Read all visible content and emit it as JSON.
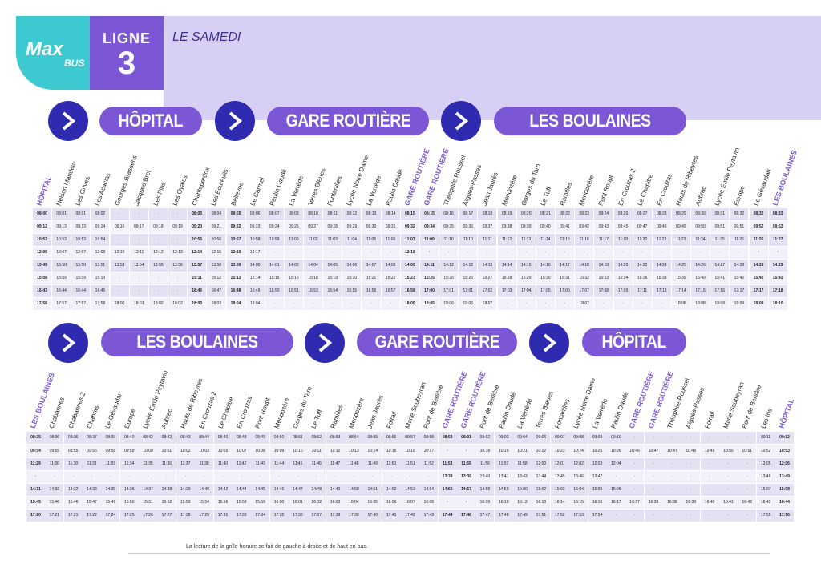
{
  "logo": {
    "max": "Max",
    "bus": "BUS"
  },
  "line": {
    "label": "LIGNE",
    "number": "3"
  },
  "day": "LE SAMEDI",
  "section1": {
    "destinations": [
      "HÔPITAL",
      "GARE ROUTIÈRE",
      "LES BOULAINES"
    ],
    "stops": [
      "HÔPITAL",
      "Nelson Mandela",
      "Les Grives",
      "Les Acacias",
      "Georges Brassens",
      "Jacques Brel",
      "Les Pins",
      "Les Oyaies",
      "Chanteperdrix",
      "Les Écureuils",
      "Bellevue",
      "Le Carmel",
      "Paulin Daudé",
      "La Verrède",
      "Terres Bleues",
      "Fontanilles",
      "Lycée Notre Dame",
      "La Verrède",
      "Paulin Daudé",
      "GARE ROUTIÈRE",
      "GARE ROUTIÈRE",
      "Théophile Roussel",
      "Aïgues-Passes",
      "Jean Jaurès",
      "Mendozère",
      "Gorges du Tarn",
      "Le Tuff",
      "Ramilles",
      "Mendozère",
      "Pont Roupt",
      "En Crouzas 2",
      "Le Chapitre",
      "En Crouzas",
      "Hauts de Ribeyres",
      "Aubrac",
      "Lycée Émile Peytavin",
      "Europe",
      "Le Gévaudan",
      "LES BOULAINES"
    ],
    "highlight": [
      0,
      19,
      20,
      38
    ],
    "bold": [
      0,
      8,
      10,
      19,
      20,
      37,
      38
    ],
    "rows": [
      [
        "08:00",
        "08:01",
        "08:01",
        "08:02",
        "·",
        "·",
        "·",
        "·",
        "08:03",
        "08:04",
        "08:05",
        "08:06",
        "08:07",
        "08:08",
        "08:10",
        "08:11",
        "08:12",
        "08:13",
        "08:14",
        "08:15",
        "08:15",
        "08:16",
        "08:17",
        "08:18",
        "08:19",
        "08:20",
        "08:21",
        "08:22",
        "08:23",
        "08:24",
        "08:26",
        "08:27",
        "08:28",
        "08:29",
        "08:30",
        "08:31",
        "08:32",
        "08:32",
        "08:33"
      ],
      [
        "09:12",
        "09:13",
        "09:13",
        "09:14",
        "09:16",
        "09:17",
        "09:18",
        "09:19",
        "09:20",
        "09:21",
        "09:22",
        "09:23",
        "09:24",
        "09:25",
        "09:27",
        "09:28",
        "09:29",
        "09:30",
        "09:31",
        "09:32",
        "09:34",
        "09:35",
        "09:36",
        "09:37",
        "09:38",
        "09:39",
        "09:40",
        "09:41",
        "09:42",
        "09:43",
        "09:45",
        "09:47",
        "09:48",
        "09:49",
        "09:50",
        "09:51",
        "09:51",
        "09:52",
        "09:53"
      ],
      [
        "10:52",
        "10:53",
        "10:53",
        "10:54",
        "·",
        "·",
        "·",
        "·",
        "10:55",
        "10:56",
        "10:57",
        "10:58",
        "10:59",
        "11:00",
        "11:02",
        "11:03",
        "11:04",
        "11:05",
        "11:06",
        "11:07",
        "11:09",
        "11:10",
        "11:10",
        "11:11",
        "11:12",
        "11:13",
        "11:14",
        "11:15",
        "11:16",
        "11:17",
        "11:18",
        "11:20",
        "11:22",
        "11:23",
        "11:24",
        "11:25",
        "11:26",
        "11:26",
        "11:27"
      ],
      [
        "12:06",
        "12:07",
        "12:07",
        "12:08",
        "12:10",
        "12:11",
        "12:12",
        "12:13",
        "12:14",
        "12:15",
        "12:16",
        "12:17",
        "·",
        "·",
        "·",
        "·",
        "·",
        "·",
        "·",
        "12:18",
        "·",
        "·",
        "·",
        "·",
        "·",
        "·",
        "·",
        "·",
        "·",
        "·",
        "·",
        "·",
        "·",
        "·",
        "·",
        "·",
        "·",
        "·",
        "·"
      ],
      [
        "13:49",
        "13:50",
        "13:50",
        "13:51",
        "13:53",
        "13:54",
        "13:55",
        "13:56",
        "13:57",
        "13:58",
        "13:59",
        "14:00",
        "14:01",
        "14:02",
        "14:04",
        "14:05",
        "14:06",
        "14:07",
        "14:08",
        "14:09",
        "14:11",
        "14:12",
        "14:12",
        "14:13",
        "14:14",
        "14:15",
        "14:16",
        "14:17",
        "14:18",
        "14:19",
        "14:20",
        "14:22",
        "14:24",
        "14:25",
        "14:26",
        "14:27",
        "14:28",
        "14:28",
        "14:29"
      ],
      [
        "15:08",
        "15:09",
        "15:09",
        "15:10",
        "·",
        "·",
        "·",
        "·",
        "15:11",
        "15:12",
        "15:13",
        "15:14",
        "15:15",
        "15:16",
        "15:18",
        "15:19",
        "15:20",
        "15:21",
        "15:22",
        "15:23",
        "15:25",
        "15:26",
        "15:26",
        "15:27",
        "15:28",
        "15:29",
        "15:30",
        "15:31",
        "15:32",
        "15:33",
        "15:34",
        "15:36",
        "15:38",
        "15:39",
        "15:40",
        "15:41",
        "15:42",
        "15:42",
        "15:43"
      ],
      [
        "16:43",
        "16:44",
        "16:44",
        "16:45",
        "·",
        "·",
        "·",
        "·",
        "16:46",
        "16:47",
        "16:48",
        "16:49",
        "16:50",
        "16:51",
        "16:53",
        "16:54",
        "16:55",
        "16:56",
        "16:57",
        "16:58",
        "17:00",
        "17:01",
        "17:01",
        "17:02",
        "17:03",
        "17:04",
        "17:05",
        "17:06",
        "17:07",
        "17:08",
        "17:09",
        "17:11",
        "17:13",
        "17:14",
        "17:15",
        "17:16",
        "17:17",
        "17:17",
        "17:18"
      ],
      [
        "17:56",
        "17:57",
        "17:57",
        "17:58",
        "18:00",
        "18:01",
        "18:02",
        "18:02",
        "18:03",
        "18:03",
        "18:04",
        "18:04",
        "·",
        "·",
        "·",
        "·",
        "·",
        "·",
        "·",
        "18:05",
        "18:05",
        "18:06",
        "18:06",
        "18:07",
        "·",
        "·",
        "·",
        "·",
        "18:07",
        "·",
        "·",
        "·",
        "·",
        "18:08",
        "18:08",
        "18:08",
        "18:09",
        "18:09",
        "18:10"
      ]
    ]
  },
  "section2": {
    "destinations": [
      "LES BOULAINES",
      "GARE ROUTIÈRE",
      "HÔPITAL"
    ],
    "stops": [
      "LES BOULAINES",
      "Chabannes",
      "Chabannes 2",
      "Chabrits",
      "Le Gévaudan",
      "Europe",
      "Lycée Émile Peytavin",
      "Aubrac",
      "Hauts de Ribeyres",
      "En Crouzas 2",
      "Le Chapitre",
      "En Crouzas",
      "Pont Roupt",
      "Mendozère",
      "Gorges du Tarn",
      "Le Tuff",
      "Ramilles",
      "Mendozère",
      "Jean Jaurès",
      "Foirail",
      "Marie Soubeyran",
      "Pont de Berlière",
      "GARE ROUTIÈRE",
      "GARE ROUTIÈRE",
      "Pont de Berlière",
      "Paulin Daudé",
      "La Verrède",
      "Terres Bleues",
      "Fontanilles",
      "Lycée Notre Dame",
      "La Verrède",
      "Paulin Daudé",
      "GARE ROUTIÈRE",
      "GARE ROUTIÈRE",
      "Théophile Roussel",
      "Aïgues-Passes",
      "Foirail",
      "Marie Soubeyran",
      "Pont de Berlière",
      "Les Iris",
      "HÔPITAL"
    ],
    "highlight": [
      0,
      22,
      23,
      32,
      33,
      40
    ],
    "bold": [
      0,
      22,
      23,
      40
    ],
    "rows": [
      [
        "08:35",
        "08:36",
        "08:36",
        "08:37",
        "08:39",
        "08:40",
        "08:42",
        "08:42",
        "08:43",
        "08:44",
        "08:46",
        "08:48",
        "08:49",
        "08:50",
        "08:51",
        "08:52",
        "08:53",
        "08:54",
        "08:55",
        "08:56",
        "08:57",
        "08:58",
        "08:59",
        "09:01",
        "09:02",
        "09:03",
        "09:04",
        "09:06",
        "09:07",
        "09:08",
        "09:09",
        "09:10",
        "·",
        "·",
        "·",
        "·",
        "·",
        "·",
        "·",
        "09:11",
        "09:12"
      ],
      [
        "09:54",
        "09:55",
        "09:55",
        "09:56",
        "09:58",
        "09:59",
        "10:00",
        "10:01",
        "10:02",
        "10:03",
        "10:05",
        "10:07",
        "10:08",
        "10:09",
        "10:10",
        "10:11",
        "10:12",
        "10:13",
        "10:14",
        "10:15",
        "10:16",
        "10:17",
        "·",
        "·",
        "10:18",
        "10:19",
        "10:21",
        "10:22",
        "10:23",
        "10:24",
        "10:25",
        "10:26",
        "10:46",
        "10:47",
        "10:47",
        "10:48",
        "10:49",
        "10:50",
        "10:51",
        "10:52",
        "10:53"
      ],
      [
        "11:29",
        "11:30",
        "11:30",
        "11:31",
        "11:33",
        "11:34",
        "11:35",
        "11:36",
        "11:37",
        "11:38",
        "11:40",
        "11:42",
        "11:43",
        "11:44",
        "11:45",
        "11:46",
        "11:47",
        "11:48",
        "11:49",
        "11:50",
        "11:51",
        "11:52",
        "11:53",
        "11:55",
        "11:56",
        "11:57",
        "11:58",
        "12:00",
        "12:01",
        "12:02",
        "12:03",
        "12:04",
        "·",
        "·",
        "·",
        "·",
        "·",
        "·",
        "·",
        "12:05",
        "12:06"
      ],
      [
        "·",
        "·",
        "·",
        "·",
        "·",
        "·",
        "·",
        "·",
        "·",
        "·",
        "·",
        "·",
        "·",
        "·",
        "·",
        "·",
        "·",
        "·",
        "·",
        "·",
        "·",
        "·",
        "13:38",
        "13:39",
        "13:40",
        "13:41",
        "13:43",
        "13:44",
        "13:45",
        "13:46",
        "13:47",
        "·",
        "·",
        "·",
        "·",
        "·",
        "·",
        "·",
        "·",
        "13:48",
        "13:49"
      ],
      [
        "14:31",
        "14:32",
        "14:32",
        "14:33",
        "14:35",
        "14:36",
        "14:37",
        "14:38",
        "14:39",
        "14:40",
        "14:42",
        "14:44",
        "14:45",
        "14:46",
        "14:47",
        "14:48",
        "14:49",
        "14:50",
        "14:51",
        "14:52",
        "14:53",
        "14:54",
        "14:55",
        "14:57",
        "14:58",
        "14:59",
        "15:00",
        "15:02",
        "15:03",
        "15:04",
        "15:05",
        "15:06",
        "·",
        "·",
        "·",
        "·",
        "·",
        "·",
        "·",
        "15:07",
        "15:08"
      ],
      [
        "15:45",
        "15:46",
        "15:46",
        "15:47",
        "15:49",
        "15:50",
        "15:51",
        "15:52",
        "15:53",
        "15:54",
        "15:56",
        "15:58",
        "15:59",
        "16:00",
        "16:01",
        "16:02",
        "16:03",
        "16:04",
        "16:05",
        "16:06",
        "16:07",
        "16:08",
        "·",
        "·",
        "16:09",
        "16:10",
        "16:12",
        "16:13",
        "16:14",
        "16:15",
        "16:16",
        "16:17",
        "16:37",
        "16:38",
        "16:38",
        "16:39",
        "16:40",
        "16:41",
        "16:42",
        "16:43",
        "16:44"
      ],
      [
        "17:20",
        "17:21",
        "17:21",
        "17:22",
        "17:24",
        "17:25",
        "17:26",
        "17:27",
        "17:28",
        "17:29",
        "17:31",
        "17:33",
        "17:34",
        "17:35",
        "17:36",
        "17:37",
        "17:38",
        "17:39",
        "17:40",
        "17:41",
        "17:42",
        "17:43",
        "17:44",
        "17:46",
        "17:47",
        "17:48",
        "17:49",
        "17:51",
        "17:52",
        "17:53",
        "17:54",
        "·",
        "·",
        "·",
        "·",
        "·",
        "·",
        "·",
        "·",
        "17:55",
        "17:56"
      ]
    ]
  },
  "note": "La lecture de la grille horaire se fait de gauche à droite et de haut en bas."
}
